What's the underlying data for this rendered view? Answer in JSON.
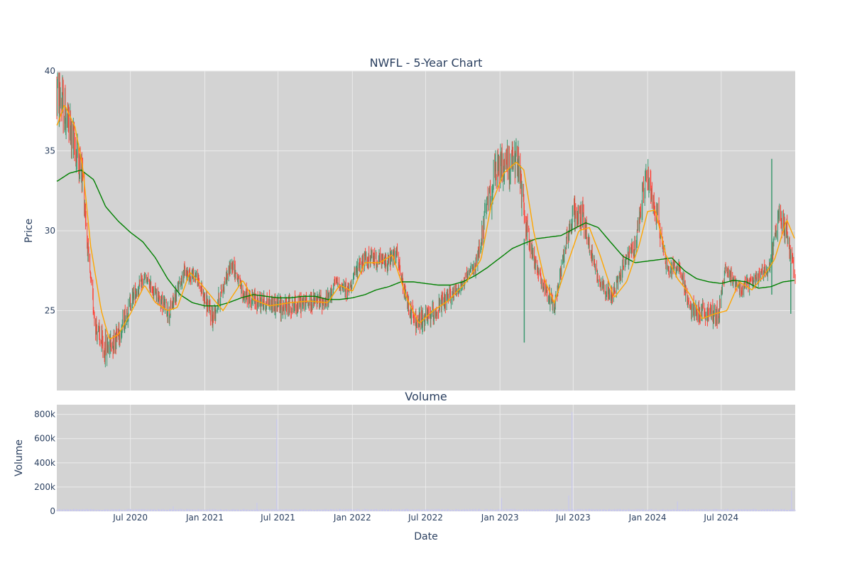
{
  "colors": {
    "plot_bg": "#d3d3d3",
    "grid": "#ebebeb",
    "increasing": "#3d9970",
    "decreasing": "#ff4136",
    "ma_short": "#ffa500",
    "ma_long": "#008000",
    "volume_bar": "#c8c8ee",
    "text": "#2a3f5f"
  },
  "chart_data": [
    {
      "type": "candlestick",
      "title": "NWFL - 5-Year Chart",
      "ylabel": "Price",
      "ylim": [
        20,
        40
      ],
      "yticks": [
        {
          "v": 25,
          "label": "25"
        },
        {
          "v": 30,
          "label": "30"
        },
        {
          "v": 35,
          "label": "35"
        },
        {
          "v": 40,
          "label": "40"
        }
      ],
      "x_range": [
        "2020-01-01",
        "2024-12-31"
      ],
      "price_path": [
        [
          "2020-01-02",
          38.8
        ],
        [
          "2020-01-25",
          37.0
        ],
        [
          "2020-02-15",
          35.2
        ],
        [
          "2020-03-05",
          33.5
        ],
        [
          "2020-03-20",
          28.0
        ],
        [
          "2020-04-05",
          24.2
        ],
        [
          "2020-04-25",
          22.5
        ],
        [
          "2020-05-15",
          23.0
        ],
        [
          "2020-06-10",
          24.0
        ],
        [
          "2020-07-05",
          25.8
        ],
        [
          "2020-08-05",
          27.0
        ],
        [
          "2020-09-05",
          26.0
        ],
        [
          "2020-10-05",
          24.8
        ],
        [
          "2020-11-10",
          27.4
        ],
        [
          "2020-12-10",
          27.2
        ],
        [
          "2021-01-20",
          24.5
        ],
        [
          "2021-02-15",
          26.5
        ],
        [
          "2021-03-10",
          28.0
        ],
        [
          "2021-04-05",
          26.0
        ],
        [
          "2021-05-05",
          25.6
        ],
        [
          "2021-06-10",
          25.5
        ],
        [
          "2021-07-15",
          25.2
        ],
        [
          "2021-09-10",
          25.5
        ],
        [
          "2021-11-01",
          25.6
        ],
        [
          "2021-11-20",
          26.8
        ],
        [
          "2021-12-20",
          26.2
        ],
        [
          "2022-01-20",
          28.0
        ],
        [
          "2022-02-20",
          28.3
        ],
        [
          "2022-03-25",
          28.0
        ],
        [
          "2022-04-20",
          28.5
        ],
        [
          "2022-05-10",
          26.0
        ],
        [
          "2022-06-05",
          24.2
        ],
        [
          "2022-07-10",
          24.6
        ],
        [
          "2022-08-20",
          25.6
        ],
        [
          "2022-10-05",
          26.8
        ],
        [
          "2022-11-05",
          28.0
        ],
        [
          "2022-11-25",
          31.0
        ],
        [
          "2022-12-20",
          33.5
        ],
        [
          "2023-01-15",
          34.3
        ],
        [
          "2023-02-15",
          34.1
        ],
        [
          "2023-03-05",
          30.5
        ],
        [
          "2023-03-25",
          28.2
        ],
        [
          "2023-04-20",
          26.5
        ],
        [
          "2023-05-15",
          25.2
        ],
        [
          "2023-06-10",
          29.0
        ],
        [
          "2023-07-01",
          31.0
        ],
        [
          "2023-07-25",
          31.0
        ],
        [
          "2023-08-10",
          29.0
        ],
        [
          "2023-09-01",
          27.0
        ],
        [
          "2023-10-05",
          25.8
        ],
        [
          "2023-11-01",
          27.8
        ],
        [
          "2023-12-01",
          29.0
        ],
        [
          "2023-12-28",
          33.5
        ],
        [
          "2024-01-25",
          31.0
        ],
        [
          "2024-02-20",
          27.5
        ],
        [
          "2024-03-20",
          27.8
        ],
        [
          "2024-04-15",
          25.0
        ],
        [
          "2024-05-20",
          24.8
        ],
        [
          "2024-06-25",
          24.8
        ],
        [
          "2024-07-10",
          27.5
        ],
        [
          "2024-08-20",
          26.4
        ],
        [
          "2024-09-25",
          27.0
        ],
        [
          "2024-10-30",
          27.8
        ],
        [
          "2024-11-20",
          31.0
        ],
        [
          "2024-12-10",
          30.0
        ],
        [
          "2024-12-31",
          27.0
        ]
      ],
      "ma_short_path": [
        [
          "2020-01-02",
          36.6
        ],
        [
          "2020-01-20",
          37.9
        ],
        [
          "2020-02-15",
          36.5
        ],
        [
          "2020-03-05",
          34.0
        ],
        [
          "2020-03-25",
          29.0
        ],
        [
          "2020-04-20",
          25.0
        ],
        [
          "2020-05-10",
          23.2
        ],
        [
          "2020-06-01",
          23.5
        ],
        [
          "2020-07-01",
          24.8
        ],
        [
          "2020-08-05",
          26.6
        ],
        [
          "2020-09-01",
          25.5
        ],
        [
          "2020-10-01",
          25.0
        ],
        [
          "2020-10-25",
          25.2
        ],
        [
          "2020-11-25",
          27.4
        ],
        [
          "2020-12-25",
          26.6
        ],
        [
          "2021-01-20",
          25.8
        ],
        [
          "2021-02-15",
          25.0
        ],
        [
          "2021-03-10",
          25.9
        ],
        [
          "2021-04-05",
          26.9
        ],
        [
          "2021-05-01",
          25.7
        ],
        [
          "2021-06-10",
          25.3
        ],
        [
          "2021-08-01",
          25.5
        ],
        [
          "2021-09-15",
          25.6
        ],
        [
          "2021-11-01",
          25.5
        ],
        [
          "2021-12-01",
          26.6
        ],
        [
          "2022-01-01",
          26.2
        ],
        [
          "2022-02-01",
          28.0
        ],
        [
          "2022-03-10",
          28.0
        ],
        [
          "2022-04-10",
          28.5
        ],
        [
          "2022-05-15",
          25.8
        ],
        [
          "2022-06-15",
          24.2
        ],
        [
          "2022-07-20",
          25.0
        ],
        [
          "2022-08-25",
          25.6
        ],
        [
          "2022-10-10",
          26.8
        ],
        [
          "2022-11-15",
          28.2
        ],
        [
          "2022-12-10",
          31.6
        ],
        [
          "2023-01-10",
          33.6
        ],
        [
          "2023-02-10",
          34.3
        ],
        [
          "2023-03-01",
          33.8
        ],
        [
          "2023-03-25",
          30.0
        ],
        [
          "2023-04-20",
          27.0
        ],
        [
          "2023-05-15",
          25.5
        ],
        [
          "2023-06-15",
          27.8
        ],
        [
          "2023-07-15",
          30.0
        ],
        [
          "2023-08-10",
          30.2
        ],
        [
          "2023-09-05",
          28.5
        ],
        [
          "2023-10-10",
          25.8
        ],
        [
          "2023-11-10",
          26.8
        ],
        [
          "2023-12-10",
          29.0
        ],
        [
          "2024-01-01",
          31.2
        ],
        [
          "2024-01-20",
          31.3
        ],
        [
          "2024-02-15",
          28.5
        ],
        [
          "2024-03-15",
          27.0
        ],
        [
          "2024-04-15",
          26.0
        ],
        [
          "2024-05-15",
          24.5
        ],
        [
          "2024-06-15",
          24.8
        ],
        [
          "2024-07-15",
          25.0
        ],
        [
          "2024-08-15",
          26.8
        ],
        [
          "2024-09-15",
          26.3
        ],
        [
          "2024-10-15",
          27.2
        ],
        [
          "2024-11-10",
          28.2
        ],
        [
          "2024-12-10",
          30.7
        ],
        [
          "2024-12-31",
          29.4
        ]
      ],
      "ma_long_path": [
        [
          "2020-01-02",
          33.1
        ],
        [
          "2020-02-01",
          33.6
        ],
        [
          "2020-03-01",
          33.8
        ],
        [
          "2020-04-01",
          33.2
        ],
        [
          "2020-05-01",
          31.5
        ],
        [
          "2020-06-01",
          30.6
        ],
        [
          "2020-07-01",
          29.9
        ],
        [
          "2020-08-01",
          29.3
        ],
        [
          "2020-09-01",
          28.3
        ],
        [
          "2020-10-01",
          27.0
        ],
        [
          "2020-11-01",
          26.0
        ],
        [
          "2020-12-01",
          25.5
        ],
        [
          "2021-01-01",
          25.3
        ],
        [
          "2021-02-01",
          25.3
        ],
        [
          "2021-03-01",
          25.5
        ],
        [
          "2021-04-01",
          25.8
        ],
        [
          "2021-05-01",
          26.0
        ],
        [
          "2021-06-01",
          25.9
        ],
        [
          "2021-07-01",
          25.8
        ],
        [
          "2021-08-01",
          25.8
        ],
        [
          "2021-09-01",
          25.9
        ],
        [
          "2021-10-01",
          25.9
        ],
        [
          "2021-11-01",
          25.7
        ],
        [
          "2021-12-01",
          25.7
        ],
        [
          "2022-01-01",
          25.8
        ],
        [
          "2022-02-01",
          26.0
        ],
        [
          "2022-03-01",
          26.3
        ],
        [
          "2022-04-01",
          26.5
        ],
        [
          "2022-05-01",
          26.8
        ],
        [
          "2022-06-01",
          26.8
        ],
        [
          "2022-07-01",
          26.7
        ],
        [
          "2022-08-01",
          26.6
        ],
        [
          "2022-09-01",
          26.6
        ],
        [
          "2022-10-01",
          26.8
        ],
        [
          "2022-11-01",
          27.2
        ],
        [
          "2022-12-01",
          27.7
        ],
        [
          "2023-01-01",
          28.3
        ],
        [
          "2023-02-01",
          28.9
        ],
        [
          "2023-03-01",
          29.2
        ],
        [
          "2023-04-01",
          29.5
        ],
        [
          "2023-05-01",
          29.6
        ],
        [
          "2023-06-01",
          29.7
        ],
        [
          "2023-07-01",
          30.1
        ],
        [
          "2023-08-01",
          30.5
        ],
        [
          "2023-09-01",
          30.2
        ],
        [
          "2023-10-01",
          29.3
        ],
        [
          "2023-11-01",
          28.4
        ],
        [
          "2023-12-01",
          28.0
        ],
        [
          "2024-01-01",
          28.1
        ],
        [
          "2024-02-01",
          28.2
        ],
        [
          "2024-03-01",
          28.3
        ],
        [
          "2024-04-01",
          27.5
        ],
        [
          "2024-05-01",
          27.0
        ],
        [
          "2024-06-01",
          26.8
        ],
        [
          "2024-07-01",
          26.7
        ],
        [
          "2024-08-01",
          26.9
        ],
        [
          "2024-09-01",
          26.8
        ],
        [
          "2024-10-01",
          26.4
        ],
        [
          "2024-11-01",
          26.5
        ],
        [
          "2024-12-01",
          26.8
        ],
        [
          "2024-12-31",
          26.9
        ]
      ],
      "spikes": [
        {
          "date": "2023-03-02",
          "low": 23.0,
          "high": 29.5
        },
        {
          "date": "2024-11-03",
          "low": 26.0,
          "high": 34.5
        },
        {
          "date": "2024-12-20",
          "low": 24.8,
          "high": 28.0
        }
      ]
    },
    {
      "type": "bar",
      "title": "Volume",
      "xlabel": "Date",
      "ylabel": "Volume",
      "ylim": [
        0,
        880000
      ],
      "yticks": [
        {
          "v": 0,
          "label": "0"
        },
        {
          "v": 200000,
          "label": "200k"
        },
        {
          "v": 400000,
          "label": "400k"
        },
        {
          "v": 600000,
          "label": "600k"
        },
        {
          "v": 800000,
          "label": "800k"
        }
      ],
      "baseline_volume": [
        8000,
        20000
      ],
      "spikes": [
        {
          "date": "2021-06-28",
          "value": 760000
        },
        {
          "date": "2023-06-28",
          "value": 820000
        },
        {
          "date": "2024-12-22",
          "value": 170000
        },
        {
          "date": "2023-01-05",
          "value": 110000
        },
        {
          "date": "2023-06-20",
          "value": 130000
        },
        {
          "date": "2024-03-15",
          "value": 80000
        },
        {
          "date": "2021-05-10",
          "value": 70000
        },
        {
          "date": "2020-10-15",
          "value": 40000
        }
      ]
    }
  ],
  "x_axis": {
    "ticks": [
      {
        "date": "2020-07-01",
        "label": "Jul 2020"
      },
      {
        "date": "2021-01-01",
        "label": "Jan 2021"
      },
      {
        "date": "2021-07-01",
        "label": "Jul 2021"
      },
      {
        "date": "2022-01-01",
        "label": "Jan 2022"
      },
      {
        "date": "2022-07-01",
        "label": "Jul 2022"
      },
      {
        "date": "2023-01-01",
        "label": "Jan 2023"
      },
      {
        "date": "2023-07-01",
        "label": "Jul 2023"
      },
      {
        "date": "2024-01-01",
        "label": "Jan 2024"
      },
      {
        "date": "2024-07-01",
        "label": "Jul 2024"
      }
    ]
  }
}
